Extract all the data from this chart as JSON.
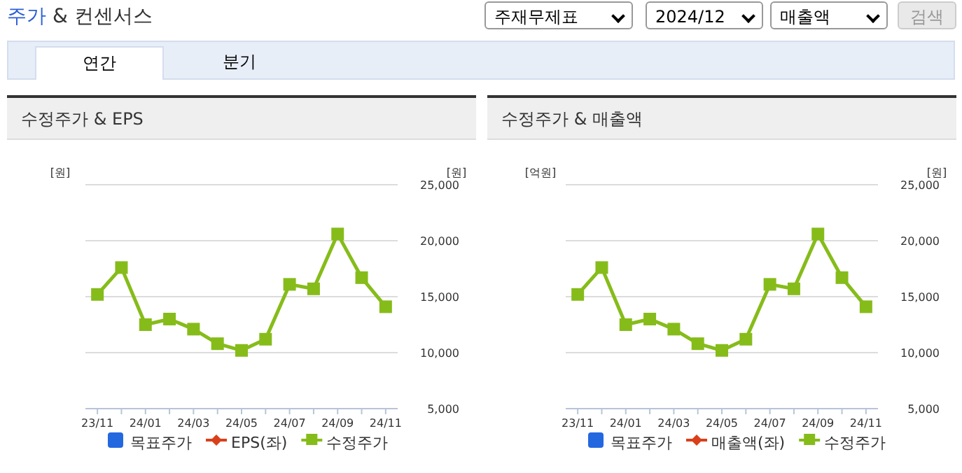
{
  "chart_data": [
    {
      "type": "other",
      "title": "주가 & 컨센서스",
      "annotations": [
        "주재무제표",
        "2024/12",
        "매출액",
        "검색",
        "연간",
        "분기"
      ]
    },
    {
      "type": "line",
      "title": "수정주가 & EPS",
      "ylabel": "[원]",
      "y2label": "[원]",
      "categories": [
        "23/11",
        null,
        "24/01",
        null,
        "24/03",
        null,
        "24/05",
        null,
        "24/07",
        null,
        "24/09",
        null,
        "24/11"
      ],
      "y2lim": [
        5000,
        25000
      ],
      "y2ticks": [
        {
          "value": 5000,
          "label": "5,000"
        },
        {
          "value": 10000,
          "label": "10,000"
        },
        {
          "value": 15000,
          "label": "15,000"
        },
        {
          "value": 20000,
          "label": "20,000"
        },
        {
          "value": 25000,
          "label": "25,000"
        }
      ],
      "tick_labels": "x",
      "grid": "y",
      "legend": "bottom",
      "series": [
        {
          "name": "목표주가",
          "color": "#2468e0",
          "type": "bar",
          "values": [
            null,
            null,
            null,
            null,
            null,
            null,
            null,
            null,
            null,
            null,
            null,
            null,
            null
          ]
        },
        {
          "name": "EPS(좌)",
          "color": "#d9401a",
          "marker": "diamond",
          "values": [
            null,
            null,
            null,
            null,
            null,
            null,
            null,
            null,
            null,
            null,
            null,
            null,
            null
          ]
        },
        {
          "name": "수정주가",
          "color": "#86bc1a",
          "marker": "square",
          "axis": "y2",
          "values": [
            15200,
            17600,
            12500,
            13000,
            12100,
            10800,
            10200,
            11200,
            16100,
            15700,
            20600,
            16700,
            14100
          ]
        }
      ]
    },
    {
      "type": "line",
      "title": "수정주가 & 매출액",
      "ylabel": "[억원]",
      "y2label": "[원]",
      "categories": [
        "23/11",
        null,
        "24/01",
        null,
        "24/03",
        null,
        "24/05",
        null,
        "24/07",
        null,
        "24/09",
        null,
        "24/11"
      ],
      "y2lim": [
        5000,
        25000
      ],
      "y2ticks": [
        {
          "value": 5000,
          "label": "5,000"
        },
        {
          "value": 10000,
          "label": "10,000"
        },
        {
          "value": 15000,
          "label": "15,000"
        },
        {
          "value": 20000,
          "label": "20,000"
        },
        {
          "value": 25000,
          "label": "25,000"
        }
      ],
      "tick_labels": "x",
      "grid": "y",
      "legend": "bottom",
      "series": [
        {
          "name": "목표주가",
          "color": "#2468e0",
          "type": "bar",
          "values": [
            null,
            null,
            null,
            null,
            null,
            null,
            null,
            null,
            null,
            null,
            null,
            null,
            null
          ]
        },
        {
          "name": "매출액(좌)",
          "color": "#d9401a",
          "marker": "diamond",
          "values": [
            null,
            null,
            null,
            null,
            null,
            null,
            null,
            null,
            null,
            null,
            null,
            null,
            null
          ]
        },
        {
          "name": "수정주가",
          "color": "#86bc1a",
          "marker": "square",
          "axis": "y2",
          "values": [
            15200,
            17600,
            12500,
            13000,
            12100,
            10800,
            10200,
            11200,
            16100,
            15700,
            20600,
            16700,
            14100
          ]
        }
      ]
    }
  ]
}
